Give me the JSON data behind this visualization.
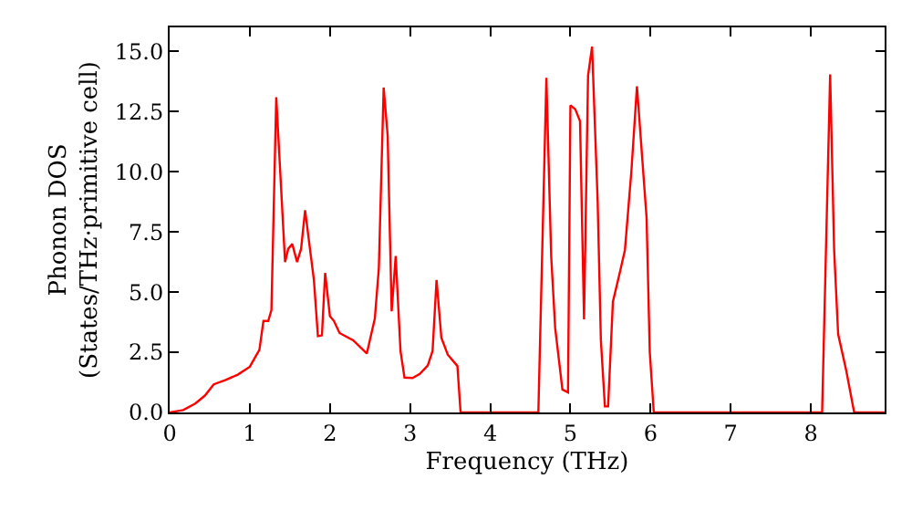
{
  "chart_data": {
    "type": "line",
    "xlabel": "Frequency (THz)",
    "ylabel": "Phonon DOS\n(States/THz·primitive cell)",
    "x": [
      0,
      0.17,
      0.32,
      0.44,
      0.55,
      0.7,
      0.85,
      1.0,
      1.12,
      1.17,
      1.23,
      1.27,
      1.33,
      1.44,
      1.48,
      1.53,
      1.59,
      1.64,
      1.69,
      1.8,
      1.85,
      1.9,
      1.94,
      2.0,
      2.05,
      2.12,
      2.29,
      2.46,
      2.56,
      2.61,
      2.67,
      2.72,
      2.77,
      2.82,
      2.88,
      2.93,
      3.03,
      3.12,
      3.22,
      3.28,
      3.33,
      3.39,
      3.47,
      3.59,
      3.63,
      4.6,
      4.7,
      4.76,
      4.81,
      4.9,
      4.97,
      5.0,
      5.06,
      5.12,
      5.17,
      5.22,
      5.27,
      5.34,
      5.38,
      5.43,
      5.47,
      5.53,
      5.62,
      5.68,
      5.76,
      5.83,
      5.95,
      5.99,
      6.04,
      8.14,
      8.24,
      8.29,
      8.34,
      8.44,
      8.54,
      8.92
    ],
    "series": [
      {
        "color": "#ff0000",
        "values": [
          0,
          0.1,
          0.37,
          0.7,
          1.17,
          1.35,
          1.57,
          1.9,
          2.6,
          3.8,
          3.8,
          4.25,
          13.1,
          6.25,
          6.8,
          7.0,
          6.25,
          6.8,
          8.4,
          5.5,
          3.17,
          3.2,
          5.8,
          4.0,
          3.8,
          3.3,
          3.0,
          2.45,
          3.9,
          6.0,
          13.5,
          11.5,
          4.2,
          6.5,
          2.55,
          1.45,
          1.43,
          1.6,
          1.95,
          2.55,
          5.5,
          3.1,
          2.4,
          1.93,
          0,
          0,
          13.9,
          6.5,
          3.5,
          0.95,
          0.83,
          12.76,
          12.6,
          12.1,
          3.87,
          14.0,
          15.2,
          8.75,
          3.0,
          0.25,
          0.25,
          4.6,
          5.87,
          6.75,
          10.0,
          13.55,
          8.1,
          2.5,
          0,
          0,
          14.05,
          6.75,
          3.25,
          1.75,
          0,
          0
        ]
      }
    ],
    "xlim": [
      0,
      8.92
    ],
    "ylim": [
      0,
      16
    ],
    "xticks": [
      0,
      1,
      2,
      3,
      4,
      5,
      6,
      7,
      8
    ],
    "yticks": [
      {
        "value": 0,
        "label": "0.0"
      },
      {
        "value": 2.5,
        "label": "2.5"
      },
      {
        "value": 5,
        "label": "5.0"
      },
      {
        "value": 7.5,
        "label": "7.5"
      },
      {
        "value": 10,
        "label": "10.0"
      },
      {
        "value": 12.5,
        "label": "12.5"
      },
      {
        "value": 15,
        "label": "15.0"
      }
    ],
    "marker": "none",
    "line_style": "solid"
  }
}
